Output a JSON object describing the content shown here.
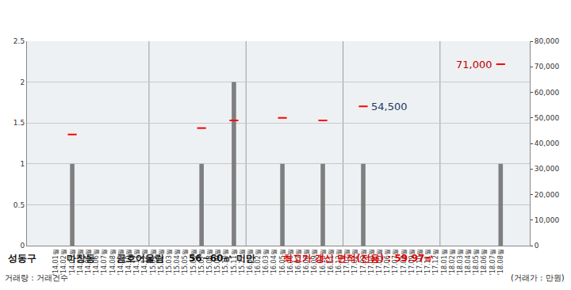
{
  "chart_data": {
    "type": "bar",
    "title_items": [
      "성동구",
      "마장동",
      "금호어울림",
      "56~60㎡ 미만"
    ],
    "highlight_text": "최고가 갱신 면적(전용) : 59.97㎡",
    "highlight_color": "#e00000",
    "y_label": "거래량 : 거래건수",
    "y2_label": "(거래가 : 만원)",
    "categories": [
      "'14.01월",
      "'14.02월",
      "'14.03월",
      "'14.04월",
      "'14.05월",
      "'14.06월",
      "'14.07월",
      "'14.08월",
      "'14.09월",
      "'14.10월",
      "'14.11월",
      "'14.12월",
      "'15.01월",
      "'15.02월",
      "'15.03월",
      "'15.04월",
      "'15.05월",
      "'15.06월",
      "'15.07월",
      "'15.08월",
      "'15.09월",
      "'15.10월",
      "'15.11월",
      "'15.12월",
      "'16.01월",
      "'16.02월",
      "'16.03월",
      "'16.04월",
      "'16.05월",
      "'16.06월",
      "'16.07월",
      "'16.08월",
      "'16.09월",
      "'16.10월",
      "'16.11월",
      "'16.12월",
      "'17.01월",
      "'17.02월",
      "'17.03월",
      "'17.04월",
      "'17.05월",
      "'17.06월",
      "'17.07월",
      "'17.08월",
      "'17.09월",
      "'17.10월",
      "'17.11월",
      "'17.12월",
      "'18.01월",
      "'18.02월",
      "'18.03월",
      "'18.04월",
      "'18.05월",
      "'18.06월",
      "'18.07월",
      "'18.08월"
    ],
    "series": [
      {
        "name": "거래건수",
        "type": "bar",
        "color": "#7f7f7f",
        "values": [
          0,
          0,
          1,
          0,
          0,
          0,
          0,
          0,
          0,
          0,
          0,
          0,
          0,
          0,
          0,
          0,
          0,
          0,
          1,
          0,
          0,
          0,
          2,
          0,
          0,
          0,
          0,
          0,
          1,
          0,
          0,
          0,
          0,
          1,
          0,
          0,
          0,
          0,
          1,
          0,
          0,
          0,
          0,
          0,
          0,
          0,
          0,
          0,
          0,
          0,
          0,
          0,
          0,
          0,
          0,
          1
        ]
      },
      {
        "name": "거래가",
        "type": "scatter",
        "marker": "dash",
        "color": "#ff0000",
        "axis": "y2",
        "values": [
          null,
          null,
          43500,
          null,
          null,
          null,
          null,
          null,
          null,
          null,
          null,
          null,
          null,
          null,
          null,
          null,
          null,
          null,
          46000,
          null,
          null,
          null,
          49000,
          null,
          null,
          null,
          null,
          null,
          50000,
          null,
          null,
          null,
          null,
          49000,
          null,
          null,
          null,
          null,
          54500,
          null,
          null,
          null,
          null,
          null,
          null,
          null,
          null,
          null,
          null,
          null,
          null,
          null,
          null,
          null,
          null,
          71000
        ]
      }
    ],
    "annotations": [
      {
        "category": "'17.03월",
        "text": "54,500",
        "color": "#1f3864"
      },
      {
        "category": "'18.08월",
        "text": "71,000",
        "color": "#c00000"
      }
    ],
    "ylim": [
      0,
      2.5
    ],
    "yticks": [
      0,
      0.5,
      1,
      1.5,
      2,
      2.5
    ],
    "y2lim": [
      0,
      80000
    ],
    "y2ticks": [
      0,
      {
        "value": 10000,
        "label": "10,000"
      },
      {
        "value": 20000,
        "label": "20,000"
      },
      {
        "value": 30000,
        "label": "30,000"
      },
      {
        "value": 40000,
        "label": "40,000"
      },
      {
        "value": 50000,
        "label": "50,000"
      },
      {
        "value": 60000,
        "label": "60,000"
      },
      {
        "value": 70000,
        "label": "70,000"
      },
      {
        "value": 80000,
        "label": "80,000"
      }
    ],
    "grid": true
  }
}
